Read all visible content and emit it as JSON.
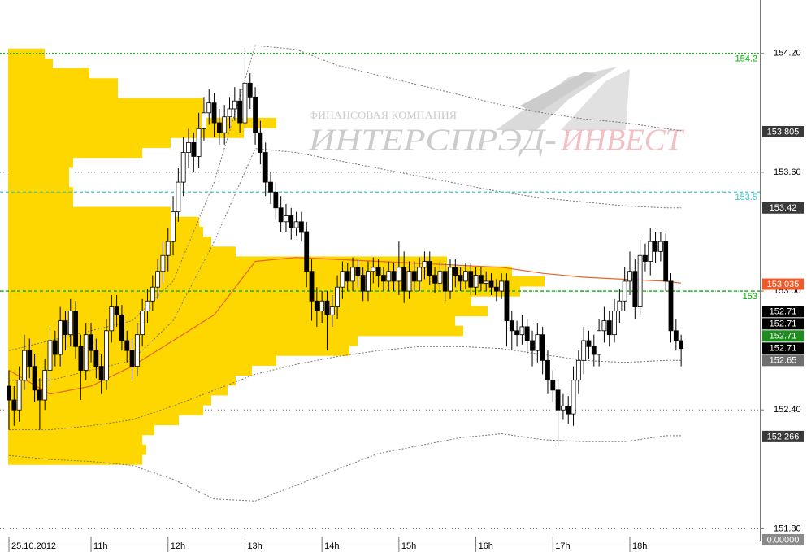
{
  "chart_data": {
    "type": "candlestick",
    "categories": [
      "25.10.2012",
      null,
      null,
      null,
      null,
      null,
      null,
      null,
      null,
      null,
      null,
      null,
      null,
      null,
      null,
      null,
      "11h",
      null,
      null,
      null,
      null,
      null,
      null,
      null,
      null,
      null,
      null,
      null,
      null,
      null,
      null,
      "12h",
      null,
      null,
      null,
      null,
      null,
      null,
      null,
      null,
      null,
      null,
      null,
      null,
      null,
      null,
      "13h",
      null,
      null,
      null,
      null,
      null,
      null,
      null,
      null,
      null,
      null,
      null,
      null,
      null,
      null,
      "14h",
      null,
      null,
      null,
      null,
      null,
      null,
      null,
      null,
      null,
      null,
      null,
      null,
      null,
      null,
      "15h",
      null,
      null,
      null,
      null,
      null,
      null,
      null,
      null,
      null,
      null,
      null,
      null,
      null,
      null,
      "16h",
      null,
      null,
      null,
      null,
      null,
      null,
      null,
      null,
      null,
      null,
      null,
      null,
      null,
      null,
      "17h",
      null,
      null,
      null,
      null,
      null,
      null,
      null,
      null,
      null,
      null,
      null,
      null,
      null,
      null,
      "18h",
      null,
      null,
      null,
      null,
      null,
      null,
      null,
      null,
      null,
      null
    ],
    "open": [
      152.52,
      152.45,
      152.4,
      152.55,
      152.7,
      152.62,
      152.5,
      152.45,
      152.6,
      152.75,
      152.68,
      152.85,
      152.78,
      152.9,
      152.72,
      152.6,
      152.78,
      152.7,
      152.62,
      152.55,
      152.8,
      152.92,
      152.88,
      152.75,
      152.7,
      152.62,
      152.78,
      152.9,
      152.95,
      153.02,
      153.1,
      153.18,
      153.25,
      153.4,
      153.55,
      153.7,
      153.75,
      153.68,
      153.82,
      153.9,
      153.95,
      153.85,
      153.8,
      153.88,
      153.92,
      153.96,
      153.85,
      154.05,
      153.98,
      153.8,
      153.7,
      153.55,
      153.5,
      153.42,
      153.35,
      153.38,
      153.32,
      153.35,
      153.3,
      153.1,
      152.95,
      152.9,
      152.95,
      152.88,
      152.92,
      153.02,
      153.1,
      153.05,
      153.12,
      153.08,
      153.0,
      153.1,
      153.12,
      153.08,
      153.05,
      153.1,
      153.05,
      153.12,
      153.0,
      153.1,
      153.05,
      153.12,
      153.15,
      153.08,
      153.04,
      153.1,
      153.0,
      153.12,
      153.08,
      153.05,
      153.1,
      153.02,
      153.08,
      153.04,
      153.05,
      153.02,
      153.0,
      153.05,
      152.85,
      152.8,
      152.78,
      152.82,
      152.75,
      152.7,
      152.78,
      152.65,
      152.55,
      152.5,
      152.4,
      152.42,
      152.38,
      152.55,
      152.65,
      152.75,
      152.72,
      152.68,
      152.8,
      152.85,
      152.78,
      152.9,
      152.95,
      153.05,
      153.1,
      152.92,
      153.18,
      153.15,
      153.25,
      153.2,
      153.25,
      153.05,
      152.8,
      152.75
    ],
    "high": [
      152.6,
      152.52,
      152.62,
      152.78,
      152.76,
      152.68,
      152.56,
      152.66,
      152.82,
      152.8,
      152.92,
      152.9,
      152.96,
      152.95,
      152.78,
      152.84,
      152.84,
      152.76,
      152.68,
      152.86,
      152.98,
      152.98,
      152.93,
      152.8,
      152.76,
      152.84,
      152.96,
      153.01,
      153.08,
      153.16,
      153.25,
      153.32,
      153.48,
      153.62,
      153.78,
      153.82,
      153.8,
      153.9,
      153.98,
      154.02,
      154.0,
      153.92,
      153.94,
      153.98,
      154.03,
      154.02,
      154.23,
      154.1,
      154.03,
      153.86,
      153.75,
      153.6,
      153.55,
      153.48,
      153.44,
      153.42,
      153.4,
      153.4,
      153.35,
      153.16,
      153.02,
      153.0,
      153.0,
      152.98,
      153.08,
      153.15,
      153.14,
      153.17,
      153.16,
      153.12,
      153.15,
      153.17,
      153.16,
      153.12,
      153.15,
      153.14,
      153.25,
      153.2,
      153.15,
      153.15,
      153.17,
      153.2,
      153.2,
      153.12,
      153.15,
      153.14,
      153.16,
      153.16,
      153.12,
      153.14,
      153.14,
      153.12,
      153.12,
      153.1,
      153.09,
      153.06,
      153.09,
      153.09,
      152.9,
      152.85,
      152.88,
      152.86,
      152.8,
      152.84,
      152.82,
      152.7,
      152.6,
      152.55,
      152.48,
      152.47,
      152.62,
      152.7,
      152.82,
      152.8,
      152.78,
      152.86,
      152.92,
      152.9,
      152.96,
      153.01,
      153.12,
      153.2,
      153.16,
      153.26,
      153.24,
      153.32,
      153.3,
      153.3,
      153.29,
      153.09,
      152.86,
      152.78
    ],
    "low": [
      152.3,
      152.32,
      152.34,
      152.5,
      152.56,
      152.44,
      152.3,
      152.4,
      152.52,
      152.62,
      152.62,
      152.7,
      152.72,
      152.66,
      152.45,
      152.55,
      152.64,
      152.56,
      152.48,
      152.5,
      152.74,
      152.82,
      152.7,
      152.64,
      152.55,
      152.57,
      152.72,
      152.84,
      152.9,
      152.96,
      153.04,
      153.1,
      153.18,
      153.35,
      153.48,
      153.62,
      153.6,
      153.62,
      153.76,
      153.84,
      153.78,
      153.74,
      153.74,
      153.82,
      153.86,
      153.8,
      153.8,
      153.92,
      153.74,
      153.64,
      153.48,
      153.44,
      153.36,
      153.3,
      153.3,
      153.26,
      153.28,
      153.25,
      153.02,
      152.85,
      152.82,
      152.84,
      152.7,
      152.82,
      152.86,
      152.96,
      153.0,
      153.0,
      153.02,
      152.95,
      152.95,
      153.04,
      153.02,
      153.0,
      153.0,
      153.0,
      152.98,
      152.94,
      152.96,
      153.0,
      153.0,
      153.06,
      153.03,
      152.99,
      153.0,
      152.95,
      152.96,
      153.02,
      153.0,
      153.01,
      152.98,
      152.98,
      153.0,
      153.0,
      152.98,
      152.95,
      152.96,
      152.72,
      152.7,
      152.72,
      152.73,
      152.68,
      152.62,
      152.64,
      152.58,
      152.48,
      152.44,
      152.22,
      152.35,
      152.33,
      152.32,
      152.48,
      152.58,
      152.66,
      152.62,
      152.62,
      152.74,
      152.72,
      152.74,
      152.84,
      152.9,
      152.98,
      152.86,
      152.88,
      153.1,
      153.08,
      153.14,
      153.15,
      153.0,
      152.74,
      152.7,
      152.62
    ],
    "close": [
      152.45,
      152.4,
      152.55,
      152.7,
      152.62,
      152.5,
      152.45,
      152.6,
      152.75,
      152.68,
      152.85,
      152.78,
      152.9,
      152.72,
      152.6,
      152.78,
      152.7,
      152.62,
      152.55,
      152.8,
      152.92,
      152.88,
      152.75,
      152.7,
      152.62,
      152.78,
      152.9,
      152.95,
      153.02,
      153.1,
      153.18,
      153.25,
      153.4,
      153.55,
      153.7,
      153.75,
      153.68,
      153.82,
      153.9,
      153.95,
      153.85,
      153.8,
      153.88,
      153.92,
      153.96,
      153.85,
      154.05,
      153.98,
      153.8,
      153.7,
      153.55,
      153.5,
      153.42,
      153.35,
      153.38,
      153.32,
      153.35,
      153.3,
      153.1,
      152.95,
      152.9,
      152.95,
      152.88,
      152.92,
      153.02,
      153.1,
      153.05,
      153.12,
      153.08,
      153.0,
      153.1,
      153.12,
      153.08,
      153.05,
      153.1,
      153.05,
      153.12,
      153.0,
      153.1,
      153.05,
      153.12,
      153.15,
      153.08,
      153.04,
      153.1,
      153.0,
      153.12,
      153.08,
      153.05,
      153.1,
      153.02,
      153.08,
      153.04,
      153.05,
      153.02,
      153.0,
      153.05,
      152.85,
      152.8,
      152.78,
      152.82,
      152.75,
      152.7,
      152.78,
      152.65,
      152.55,
      152.5,
      152.4,
      152.42,
      152.38,
      152.55,
      152.65,
      152.75,
      152.72,
      152.68,
      152.8,
      152.85,
      152.78,
      152.9,
      152.95,
      153.05,
      153.1,
      152.92,
      153.18,
      153.15,
      153.25,
      153.2,
      153.25,
      153.05,
      152.8,
      152.75,
      152.71
    ],
    "up_color": "#ffffff",
    "down_color": "#000000",
    "ylim": [
      151.74,
      154.47
    ],
    "yticks": [
      {
        "value": 154.2,
        "label": "154.20"
      },
      {
        "value": 153.6,
        "label": "153.60"
      },
      {
        "value": 153,
        "label": "153.00"
      },
      {
        "value": 152.4,
        "label": "152.40"
      },
      {
        "value": 151.8,
        "label": "151.80"
      }
    ],
    "grid": true,
    "volume_profile": {
      "color": "#ffd700",
      "prices": [
        154.2,
        154.15,
        154.1,
        154.05,
        154.0,
        153.95,
        153.9,
        153.85,
        153.8,
        153.75,
        153.7,
        153.65,
        153.6,
        153.55,
        153.5,
        153.45,
        153.4,
        153.35,
        153.3,
        153.25,
        153.2,
        153.15,
        153.1,
        153.05,
        153.0,
        152.95,
        152.9,
        152.85,
        152.8,
        152.75,
        152.7,
        152.65,
        152.6,
        152.55,
        152.5,
        152.45,
        152.4,
        152.35,
        152.3,
        152.25,
        152.2,
        152.15
      ],
      "volumes": [
        45,
        55,
        100,
        135,
        135,
        240,
        240,
        330,
        290,
        200,
        165,
        80,
        75,
        75,
        80,
        80,
        200,
        235,
        240,
        250,
        280,
        540,
        620,
        660,
        630,
        570,
        590,
        550,
        560,
        430,
        420,
        330,
        300,
        280,
        270,
        250,
        240,
        210,
        180,
        165,
        170,
        165
      ]
    },
    "indicators": {
      "x": [
        0,
        8,
        16,
        24,
        32,
        40,
        48,
        56,
        64,
        72,
        80,
        88,
        96,
        104,
        112,
        120,
        128,
        131
      ],
      "lines": [
        {
          "color": "#777777",
          "dash": "dotted",
          "values": [
            152.7,
            152.75,
            152.8,
            152.85,
            153.05,
            153.55,
            154.24,
            154.22,
            154.14,
            154.09,
            154.04,
            153.99,
            153.94,
            153.9,
            153.87,
            153.85,
            153.82,
            153.81
          ]
        },
        {
          "color": "#777777",
          "dash": "dotted",
          "values": [
            152.55,
            152.55,
            152.6,
            152.65,
            152.85,
            153.25,
            153.72,
            153.7,
            153.66,
            153.62,
            153.58,
            153.54,
            153.5,
            153.47,
            153.45,
            153.43,
            153.42,
            153.42
          ]
        },
        {
          "color": "#e8642a",
          "dash": "solid",
          "values": [
            152.6,
            152.48,
            152.52,
            152.62,
            152.75,
            152.88,
            153.15,
            153.17,
            153.16,
            153.15,
            153.14,
            153.13,
            153.12,
            153.09,
            153.07,
            153.06,
            153.05,
            153.04
          ]
        },
        {
          "color": "#777777",
          "dash": "dotted",
          "values": [
            152.3,
            152.3,
            152.32,
            152.35,
            152.42,
            152.5,
            152.58,
            152.63,
            152.67,
            152.7,
            152.72,
            152.72,
            152.71,
            152.68,
            152.65,
            152.64,
            152.65,
            152.65
          ]
        },
        {
          "color": "#777777",
          "dash": "dotted",
          "values": [
            152.17,
            152.15,
            152.14,
            152.12,
            152.05,
            151.95,
            151.94,
            152.02,
            152.1,
            152.18,
            152.22,
            152.26,
            152.28,
            152.25,
            152.24,
            152.24,
            152.27,
            152.27
          ]
        }
      ]
    },
    "levels": [
      {
        "value": 154.2,
        "color": "#00b000",
        "dash": "2,2"
      },
      {
        "value": 153.5,
        "color": "#33cccc",
        "dash": "4,3"
      },
      {
        "value": 153,
        "color": "#00b000",
        "dash": "4,3"
      }
    ],
    "price_labels": [
      {
        "value": 153.805,
        "color": "#3a3a3a"
      },
      {
        "value": 153.42,
        "color": "#3a3a3a"
      },
      {
        "value": 153.035,
        "color": "#f05a28"
      },
      {
        "value": 152.71,
        "color": "#000000"
      },
      {
        "value": 152.71,
        "color": "#000000"
      },
      {
        "value": 152.71,
        "color": "#1e8c1e"
      },
      {
        "value": 152.71,
        "color": "#000000"
      },
      {
        "value": 152.65,
        "color": "#6e6e6e"
      },
      {
        "value": 152.266,
        "color": "#3a3a3a"
      },
      {
        "value": 0,
        "label": "0.00000",
        "color": "#8a8a8a"
      }
    ],
    "watermark": {
      "company": "ФИНАНСОВАЯ КОМПАНИЯ",
      "name_left": "ИНТЕРСПРЭД-",
      "name_right": "ИНВЕСТ"
    }
  }
}
